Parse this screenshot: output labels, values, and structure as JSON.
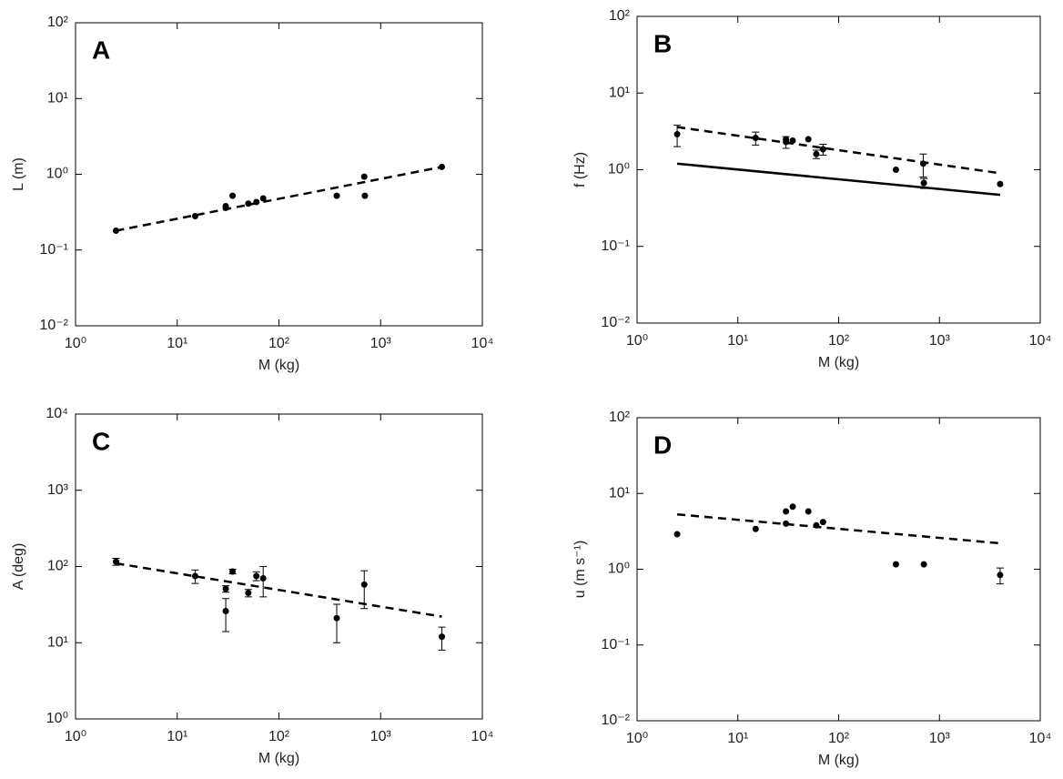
{
  "chart_data": [
    {
      "type": "scatter",
      "panel_label": "A",
      "xlabel": "M (kg)",
      "ylabel": "L (m)",
      "xscale": "log",
      "yscale": "log",
      "xlim": [
        1,
        10000
      ],
      "ylim": [
        0.01,
        100
      ],
      "xticks": [
        {
          "value": 1,
          "label": "10⁰"
        },
        {
          "value": 10,
          "label": "10¹"
        },
        {
          "value": 100,
          "label": "10²"
        },
        {
          "value": 1000,
          "label": "10³"
        },
        {
          "value": 10000,
          "label": "10⁴"
        }
      ],
      "yticks": [
        {
          "value": 0.01,
          "label": "10⁻²"
        },
        {
          "value": 0.1,
          "label": "10⁻¹"
        },
        {
          "value": 1,
          "label": "10⁰"
        },
        {
          "value": 10,
          "label": "10¹"
        },
        {
          "value": 100,
          "label": "10²"
        }
      ],
      "color": "#000000",
      "x": [
        2.5,
        15,
        30,
        30,
        35,
        50,
        60,
        70,
        370,
        690,
        700,
        4000
      ],
      "y": [
        0.18,
        0.28,
        0.36,
        0.38,
        0.52,
        0.41,
        0.43,
        0.48,
        0.52,
        0.93,
        0.52,
        1.25
      ],
      "errors": [
        null,
        null,
        null,
        null,
        null,
        null,
        null,
        null,
        null,
        null,
        null,
        null
      ],
      "fits": [
        {
          "style": "dashed",
          "x": [
            2.5,
            4000
          ],
          "y": [
            0.18,
            1.25
          ]
        }
      ]
    },
    {
      "type": "scatter",
      "panel_label": "B",
      "xlabel": "M (kg)",
      "ylabel": "f (Hz)",
      "xscale": "log",
      "yscale": "log",
      "xlim": [
        1,
        10000
      ],
      "ylim": [
        0.01,
        100
      ],
      "xticks": [
        {
          "value": 1,
          "label": "10⁰"
        },
        {
          "value": 10,
          "label": "10¹"
        },
        {
          "value": 100,
          "label": "10²"
        },
        {
          "value": 1000,
          "label": "10³"
        },
        {
          "value": 10000,
          "label": "10⁴"
        }
      ],
      "yticks": [
        {
          "value": 0.01,
          "label": "10⁻²"
        },
        {
          "value": 0.1,
          "label": "10⁻¹"
        },
        {
          "value": 1,
          "label": "10⁰"
        },
        {
          "value": 10,
          "label": "10¹"
        },
        {
          "value": 100,
          "label": "10²"
        }
      ],
      "color": "#000000",
      "x": [
        2.5,
        15,
        30,
        30,
        35,
        50,
        60,
        70,
        370,
        690,
        700,
        4000
      ],
      "y": [
        2.9,
        2.6,
        2.3,
        2.5,
        2.4,
        2.5,
        1.6,
        1.85,
        1.0,
        1.2,
        0.67,
        0.65
      ],
      "errors": [
        0.9,
        0.5,
        0.4,
        null,
        null,
        null,
        0.2,
        0.3,
        null,
        0.4,
        0.1,
        null
      ],
      "fits": [
        {
          "style": "dashed",
          "x": [
            2.5,
            4000
          ],
          "y": [
            3.6,
            0.9
          ]
        },
        {
          "style": "solid",
          "x": [
            2.5,
            4000
          ],
          "y": [
            1.2,
            0.47
          ]
        }
      ]
    },
    {
      "type": "scatter",
      "panel_label": "C",
      "xlabel": "M (kg)",
      "ylabel": "A (deg)",
      "xscale": "log",
      "yscale": "log",
      "xlim": [
        1,
        10000
      ],
      "ylim": [
        1,
        10000
      ],
      "xticks": [
        {
          "value": 1,
          "label": "10⁰"
        },
        {
          "value": 10,
          "label": "10¹"
        },
        {
          "value": 100,
          "label": "10²"
        },
        {
          "value": 1000,
          "label": "10³"
        },
        {
          "value": 10000,
          "label": "10⁴"
        }
      ],
      "yticks": [
        {
          "value": 1,
          "label": "10⁰"
        },
        {
          "value": 10,
          "label": "10¹"
        },
        {
          "value": 100,
          "label": "10²"
        },
        {
          "value": 1000,
          "label": "10³"
        },
        {
          "value": 10000,
          "label": "10⁴"
        }
      ],
      "color": "#000000",
      "x": [
        2.5,
        15,
        30,
        30,
        35,
        50,
        60,
        70,
        370,
        690,
        4000
      ],
      "y": [
        116,
        75,
        51,
        26,
        86,
        45,
        75,
        70,
        21,
        58,
        12
      ],
      "errors": [
        12,
        15,
        5,
        12,
        6,
        5,
        10,
        30,
        11,
        30,
        4
      ],
      "fits": [
        {
          "style": "dashed",
          "x": [
            2.5,
            4000
          ],
          "y": [
            110,
            22
          ]
        }
      ]
    },
    {
      "type": "scatter",
      "panel_label": "D",
      "xlabel": "M (kg)",
      "ylabel": "u (m s⁻¹)",
      "xscale": "log",
      "yscale": "log",
      "xlim": [
        1,
        10000
      ],
      "ylim": [
        0.01,
        100
      ],
      "xticks": [
        {
          "value": 1,
          "label": "10⁰"
        },
        {
          "value": 10,
          "label": "10¹"
        },
        {
          "value": 100,
          "label": "10²"
        },
        {
          "value": 1000,
          "label": "10³"
        },
        {
          "value": 10000,
          "label": "10⁴"
        }
      ],
      "yticks": [
        {
          "value": 0.01,
          "label": "10⁻²"
        },
        {
          "value": 0.1,
          "label": "10⁻¹"
        },
        {
          "value": 1,
          "label": "10⁰"
        },
        {
          "value": 10,
          "label": "10¹"
        },
        {
          "value": 100,
          "label": "10²"
        }
      ],
      "color": "#000000",
      "x": [
        2.5,
        15,
        30,
        30,
        35,
        50,
        60,
        70,
        370,
        700,
        4000
      ],
      "y": [
        2.9,
        3.4,
        5.8,
        4.0,
        6.7,
        5.8,
        3.8,
        4.2,
        1.16,
        1.16,
        0.84
      ],
      "errors": [
        null,
        null,
        null,
        null,
        null,
        null,
        null,
        null,
        null,
        null,
        0.2
      ],
      "fits": [
        {
          "style": "dashed",
          "x": [
            2.5,
            4000
          ],
          "y": [
            5.3,
            2.2
          ]
        }
      ]
    }
  ]
}
